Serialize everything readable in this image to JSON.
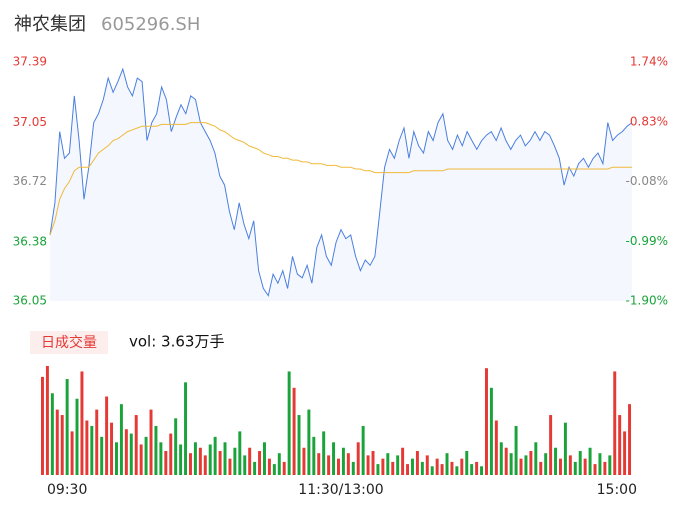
{
  "header": {
    "name": "神农集团",
    "code": "605296.SH"
  },
  "chart_data": {
    "type": "line",
    "xlim": [
      0,
      120
    ],
    "xticks": [
      {
        "value": 0,
        "label": "09:30"
      },
      {
        "value": 60,
        "label": "11:30/13:00"
      },
      {
        "value": 120,
        "label": "15:00"
      }
    ],
    "ylim": [
      36.05,
      37.39
    ],
    "yticks": [
      37.39,
      37.05,
      36.72,
      36.38,
      36.05
    ],
    "ytick_colors": [
      "#e53935",
      "#e53935",
      "#888888",
      "#1aa33a",
      "#1aa33a"
    ],
    "y2lim": [
      -1.9,
      1.74
    ],
    "y2ticks": [
      {
        "value": 1.74,
        "label": "1.74%"
      },
      {
        "value": 0.83,
        "label": "0.83%"
      },
      {
        "value": -0.08,
        "label": "-0.08%"
      },
      {
        "value": -0.99,
        "label": "-0.99%"
      },
      {
        "value": -1.9,
        "label": "-1.90%"
      }
    ],
    "series": [
      {
        "color": "#4a7fe0",
        "values": [
          36.42,
          36.6,
          37.0,
          36.85,
          36.88,
          37.2,
          36.95,
          36.62,
          36.8,
          37.05,
          37.1,
          37.18,
          37.3,
          37.22,
          37.28,
          37.35,
          37.25,
          37.2,
          37.3,
          37.28,
          36.95,
          37.05,
          37.1,
          37.25,
          37.18,
          37.0,
          37.08,
          37.15,
          37.1,
          37.2,
          37.18,
          37.05,
          37.0,
          36.95,
          36.88,
          36.75,
          36.7,
          36.55,
          36.45,
          36.6,
          36.48,
          36.4,
          36.5,
          36.22,
          36.12,
          36.08,
          36.2,
          36.15,
          36.22,
          36.12,
          36.3,
          36.2,
          36.18,
          36.25,
          36.15,
          36.35,
          36.42,
          36.3,
          36.25,
          36.38,
          36.45,
          36.4,
          36.42,
          36.3,
          36.22,
          36.28,
          36.25,
          36.3,
          36.55,
          36.8,
          36.9,
          36.85,
          36.95,
          37.02,
          36.85,
          37.0,
          36.92,
          36.88,
          37.0,
          36.95,
          37.05,
          37.1,
          36.95,
          36.9,
          36.98,
          36.92,
          37.0,
          36.95,
          36.9,
          36.95,
          36.98,
          37.0,
          36.95,
          37.02,
          36.95,
          36.9,
          36.95,
          36.98,
          36.92,
          36.95,
          37.0,
          36.95,
          37.0,
          36.98,
          36.92,
          36.85,
          36.7,
          36.8,
          36.75,
          36.82,
          36.85,
          36.8,
          36.85,
          36.88,
          36.82,
          37.05,
          36.95,
          36.98,
          37.0,
          37.03,
          37.05
        ]
      },
      {
        "color": "#f0b93a",
        "values": [
          36.42,
          36.5,
          36.62,
          36.68,
          36.72,
          36.78,
          36.8,
          36.8,
          36.8,
          36.84,
          36.88,
          36.9,
          36.92,
          36.95,
          36.96,
          36.98,
          37.0,
          37.01,
          37.02,
          37.03,
          37.03,
          37.03,
          37.03,
          37.04,
          37.04,
          37.04,
          37.04,
          37.04,
          37.04,
          37.05,
          37.05,
          37.05,
          37.05,
          37.04,
          37.03,
          37.01,
          37.0,
          36.98,
          36.96,
          36.95,
          36.94,
          36.92,
          36.91,
          36.9,
          36.88,
          36.87,
          36.86,
          36.86,
          36.85,
          36.85,
          36.84,
          36.84,
          36.83,
          36.83,
          36.82,
          36.82,
          36.82,
          36.81,
          36.81,
          36.81,
          36.8,
          36.8,
          36.8,
          36.79,
          36.79,
          36.78,
          36.78,
          36.77,
          36.77,
          36.77,
          36.77,
          36.77,
          36.77,
          36.77,
          36.77,
          36.78,
          36.78,
          36.78,
          36.78,
          36.78,
          36.78,
          36.78,
          36.79,
          36.79,
          36.79,
          36.79,
          36.79,
          36.79,
          36.79,
          36.79,
          36.79,
          36.79,
          36.79,
          36.79,
          36.79,
          36.79,
          36.79,
          36.79,
          36.79,
          36.79,
          36.79,
          36.79,
          36.79,
          36.79,
          36.79,
          36.79,
          36.79,
          36.79,
          36.79,
          36.79,
          36.79,
          36.79,
          36.79,
          36.79,
          36.79,
          36.79,
          36.8,
          36.8,
          36.8,
          36.8,
          36.8
        ]
      }
    ]
  },
  "volume_chart": {
    "type": "bar",
    "legend": "日成交量",
    "summary": "vol: 3.63万手",
    "values": [
      90,
      100,
      75,
      60,
      55,
      88,
      40,
      70,
      95,
      50,
      45,
      60,
      35,
      72,
      48,
      30,
      65,
      42,
      38,
      55,
      28,
      35,
      60,
      45,
      30,
      22,
      38,
      52,
      28,
      85,
      20,
      30,
      25,
      18,
      28,
      35,
      22,
      30,
      15,
      25,
      40,
      18,
      25,
      12,
      22,
      30,
      15,
      10,
      20,
      12,
      95,
      80,
      55,
      25,
      60,
      35,
      20,
      40,
      18,
      30,
      15,
      25,
      20,
      12,
      30,
      45,
      18,
      22,
      10,
      15,
      20,
      12,
      18,
      25,
      10,
      15,
      22,
      12,
      18,
      8,
      15,
      10,
      20,
      12,
      8,
      15,
      22,
      10,
      12,
      8,
      98,
      80,
      50,
      30,
      25,
      20,
      45,
      15,
      18,
      22,
      30,
      12,
      20,
      55,
      25,
      15,
      48,
      18,
      12,
      22,
      15,
      25,
      10,
      20,
      12,
      18,
      95,
      55,
      40,
      65
    ],
    "colors": [
      "#e53935",
      "#e53935",
      "#1aa33a",
      "#e53935",
      "#e53935",
      "#1aa33a",
      "#e53935",
      "#1aa33a",
      "#e53935",
      "#e53935",
      "#1aa33a",
      "#e53935",
      "#1aa33a",
      "#e53935",
      "#e53935",
      "#1aa33a",
      "#1aa33a",
      "#e53935",
      "#1aa33a",
      "#e53935",
      "#e53935",
      "#1aa33a",
      "#e53935",
      "#1aa33a",
      "#1aa33a",
      "#e53935",
      "#e53935",
      "#1aa33a",
      "#1aa33a",
      "#1aa33a",
      "#e53935",
      "#1aa33a",
      "#e53935",
      "#e53935",
      "#1aa33a",
      "#1aa33a",
      "#e53935",
      "#1aa33a",
      "#e53935",
      "#1aa33a",
      "#1aa33a",
      "#1aa33a",
      "#e53935",
      "#1aa33a",
      "#e53935",
      "#1aa33a",
      "#e53935",
      "#1aa33a",
      "#1aa33a",
      "#e53935",
      "#1aa33a",
      "#e53935",
      "#1aa33a",
      "#e53935",
      "#1aa33a",
      "#1aa33a",
      "#e53935",
      "#1aa33a",
      "#e53935",
      "#1aa33a",
      "#e53935",
      "#1aa33a",
      "#e53935",
      "#1aa33a",
      "#e53935",
      "#1aa33a",
      "#e53935",
      "#e53935",
      "#1aa33a",
      "#e53935",
      "#1aa33a",
      "#e53935",
      "#1aa33a",
      "#e53935",
      "#e53935",
      "#1aa33a",
      "#e53935",
      "#1aa33a",
      "#e53935",
      "#1aa33a",
      "#e53935",
      "#e53935",
      "#1aa33a",
      "#e53935",
      "#1aa33a",
      "#e53935",
      "#1aa33a",
      "#1aa33a",
      "#e53935",
      "#1aa33a",
      "#e53935",
      "#1aa33a",
      "#e53935",
      "#1aa33a",
      "#e53935",
      "#1aa33a",
      "#1aa33a",
      "#e53935",
      "#1aa33a",
      "#e53935",
      "#1aa33a",
      "#e53935",
      "#1aa33a",
      "#e53935",
      "#1aa33a",
      "#e53935",
      "#1aa33a",
      "#e53935",
      "#1aa33a",
      "#1aa33a",
      "#e53935",
      "#1aa33a",
      "#e53935",
      "#1aa33a",
      "#e53935",
      "#1aa33a",
      "#e53935",
      "#e53935",
      "#e53935",
      "#e53935"
    ]
  }
}
